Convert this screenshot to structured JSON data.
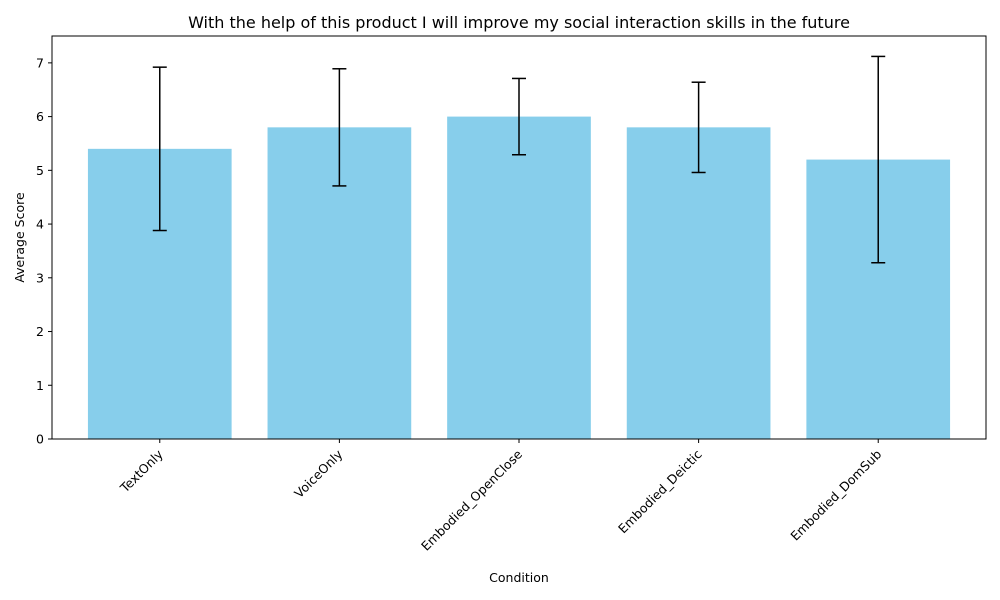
{
  "chart_data": {
    "type": "bar",
    "title": "With the help of this product I will improve my social interaction skills in the future",
    "xlabel": "Condition",
    "ylabel": "Average Score",
    "categories": [
      "TextOnly",
      "VoiceOnly",
      "Embodied_OpenClose",
      "Embodied_Deictic",
      "Embodied_DomSub"
    ],
    "values": [
      5.4,
      5.8,
      6.0,
      5.8,
      5.2
    ],
    "error": [
      1.52,
      1.09,
      0.71,
      0.84,
      1.92
    ],
    "ylim": [
      0,
      7.5
    ],
    "yticks": [
      0,
      1,
      2,
      3,
      4,
      5,
      6,
      7
    ],
    "bar_color": "#87ceeb",
    "error_color": "#000000",
    "grid": false,
    "xtick_rotation_deg": 45
  }
}
